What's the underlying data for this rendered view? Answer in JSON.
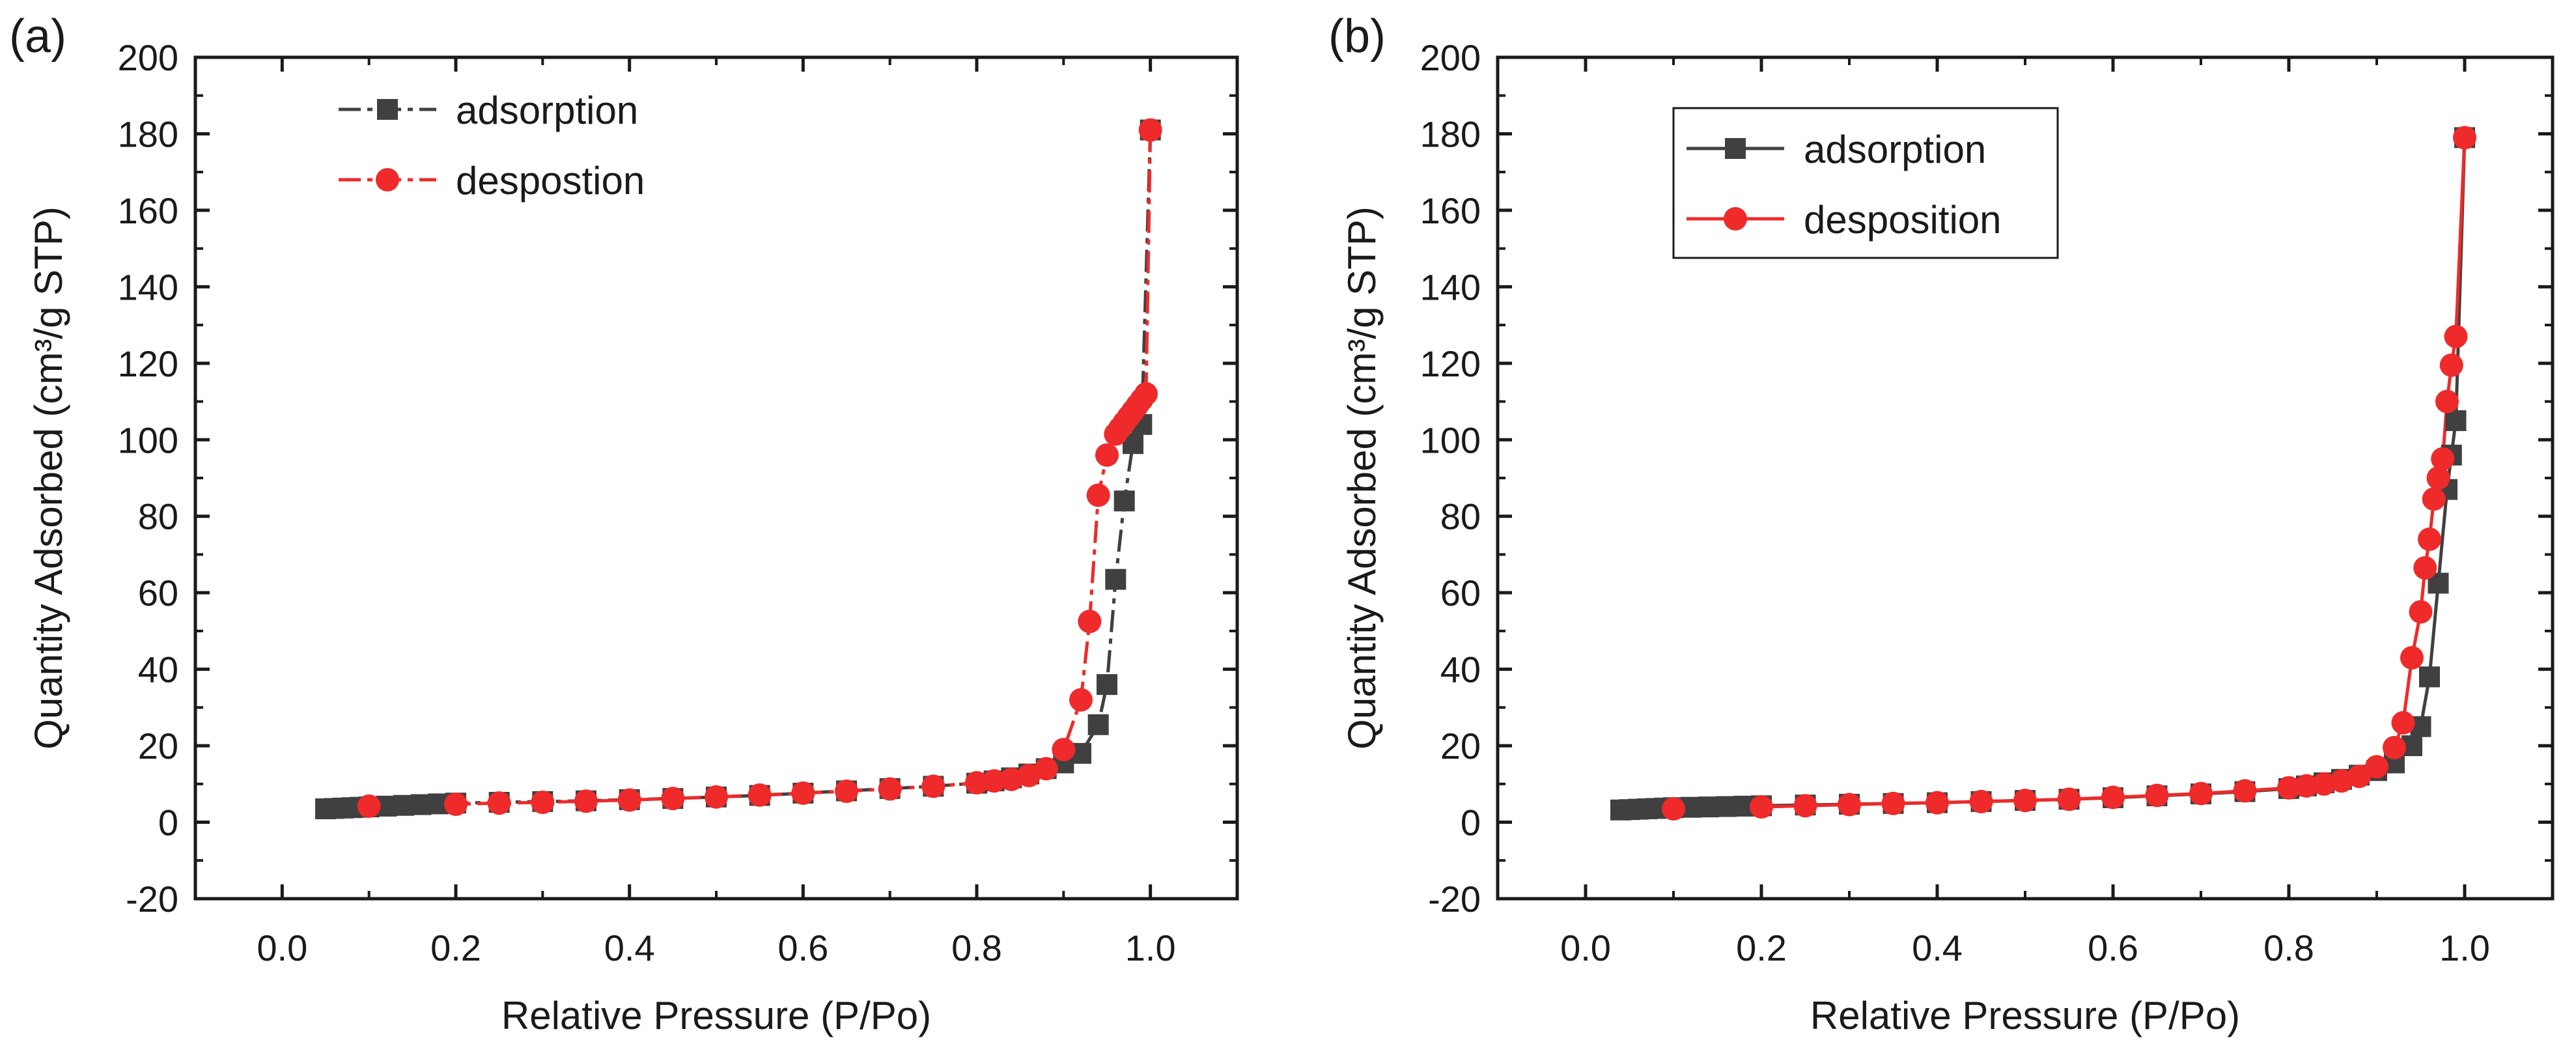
{
  "chart_data": [
    {
      "type": "scatter",
      "panel_label": "(a)",
      "xlabel": "Relative Pressure (P/Po)",
      "ylabel": "Quantity Adsorbed (cm³/g STP)",
      "xlim": [
        -0.1,
        1.1
      ],
      "ylim": [
        -20,
        200
      ],
      "xticks": [
        0.0,
        0.2,
        0.4,
        0.6,
        0.8,
        1.0
      ],
      "xtick_labels": [
        "0.0",
        "0.2",
        "0.4",
        "0.6",
        "0.8",
        "1.0"
      ],
      "yticks": [
        -20,
        0,
        20,
        40,
        60,
        80,
        100,
        120,
        140,
        160,
        180,
        200
      ],
      "ytick_labels": [
        "-20",
        "0",
        "20",
        "40",
        "60",
        "80",
        "100",
        "120",
        "140",
        "160",
        "180",
        "200"
      ],
      "grid": false,
      "legend_position": "top-left",
      "series": [
        {
          "name": "adsorption",
          "color": "#404040",
          "marker": "square",
          "line_style": "dashdot",
          "x": [
            0.05,
            0.06,
            0.07,
            0.08,
            0.09,
            0.1,
            0.12,
            0.14,
            0.16,
            0.18,
            0.2,
            0.25,
            0.3,
            0.35,
            0.4,
            0.45,
            0.5,
            0.55,
            0.6,
            0.65,
            0.7,
            0.75,
            0.8,
            0.82,
            0.84,
            0.86,
            0.88,
            0.9,
            0.92,
            0.94,
            0.95,
            0.96,
            0.97,
            0.98,
            0.99,
            1.0
          ],
          "y": [
            3.5,
            3.6,
            3.7,
            3.8,
            3.9,
            4.0,
            4.2,
            4.4,
            4.6,
            4.8,
            5.0,
            5.2,
            5.4,
            5.6,
            5.9,
            6.2,
            6.6,
            7.0,
            7.6,
            8.2,
            8.8,
            9.4,
            10.2,
            10.8,
            11.6,
            12.6,
            14.0,
            15.5,
            18.0,
            25.5,
            36.0,
            63.5,
            84.0,
            99.0,
            104.0,
            181.0
          ]
        },
        {
          "name": "despostion",
          "color": "#ee2a2a",
          "marker": "circle",
          "line_style": "dashdot",
          "x": [
            1.0,
            0.995,
            0.99,
            0.985,
            0.98,
            0.975,
            0.97,
            0.965,
            0.96,
            0.95,
            0.94,
            0.93,
            0.92,
            0.9,
            0.88,
            0.86,
            0.84,
            0.82,
            0.8,
            0.75,
            0.7,
            0.65,
            0.6,
            0.55,
            0.5,
            0.45,
            0.4,
            0.35,
            0.3,
            0.25,
            0.2,
            0.1
          ],
          "y": [
            181.0,
            112.0,
            110.5,
            109.0,
            107.5,
            106.0,
            104.5,
            103.0,
            101.5,
            96.0,
            85.5,
            52.5,
            32.0,
            19.0,
            14.0,
            12.2,
            11.2,
            10.8,
            10.3,
            9.4,
            8.7,
            8.1,
            7.6,
            7.1,
            6.6,
            6.2,
            5.8,
            5.5,
            5.2,
            5.0,
            4.7,
            4.2
          ]
        }
      ]
    },
    {
      "type": "scatter",
      "panel_label": "(b)",
      "xlabel": "Relative Pressure (P/Po)",
      "ylabel": "Quantity Adsorbed (cm³/g STP)",
      "xlim": [
        -0.1,
        1.1
      ],
      "ylim": [
        -20,
        200
      ],
      "xticks": [
        0.0,
        0.2,
        0.4,
        0.6,
        0.8,
        1.0
      ],
      "xtick_labels": [
        "0.0",
        "0.2",
        "0.4",
        "0.6",
        "0.8",
        "1.0"
      ],
      "yticks": [
        -20,
        0,
        20,
        40,
        60,
        80,
        100,
        120,
        140,
        160,
        180,
        200
      ],
      "ytick_labels": [
        "-20",
        "0",
        "20",
        "40",
        "60",
        "80",
        "100",
        "120",
        "140",
        "160",
        "180",
        "200"
      ],
      "grid": false,
      "legend_position": "top-left",
      "series": [
        {
          "name": "adsorption",
          "color": "#404040",
          "marker": "square",
          "line_style": "solid",
          "x": [
            0.04,
            0.05,
            0.06,
            0.07,
            0.08,
            0.09,
            0.1,
            0.12,
            0.14,
            0.16,
            0.18,
            0.2,
            0.25,
            0.3,
            0.35,
            0.4,
            0.45,
            0.5,
            0.55,
            0.6,
            0.65,
            0.7,
            0.75,
            0.8,
            0.82,
            0.84,
            0.86,
            0.88,
            0.9,
            0.92,
            0.94,
            0.95,
            0.96,
            0.97,
            0.98,
            0.985,
            0.99,
            1.0
          ],
          "y": [
            3.2,
            3.3,
            3.4,
            3.5,
            3.6,
            3.7,
            3.8,
            3.9,
            4.0,
            4.1,
            4.2,
            4.3,
            4.5,
            4.7,
            4.9,
            5.1,
            5.4,
            5.7,
            6.0,
            6.4,
            6.9,
            7.4,
            8.0,
            8.8,
            9.5,
            10.3,
            11.2,
            12.3,
            13.5,
            15.5,
            20.0,
            25.0,
            38.0,
            62.5,
            87.0,
            96.0,
            105.0,
            179.0
          ]
        },
        {
          "name": "desposition",
          "color": "#ee2a2a",
          "marker": "circle",
          "line_style": "solid",
          "x": [
            1.0,
            0.99,
            0.985,
            0.98,
            0.975,
            0.97,
            0.965,
            0.96,
            0.955,
            0.95,
            0.94,
            0.93,
            0.92,
            0.9,
            0.88,
            0.86,
            0.84,
            0.82,
            0.8,
            0.75,
            0.7,
            0.65,
            0.6,
            0.55,
            0.5,
            0.45,
            0.4,
            0.35,
            0.3,
            0.25,
            0.2,
            0.1
          ],
          "y": [
            179.0,
            127.0,
            119.5,
            110.0,
            95.0,
            90.0,
            84.5,
            74.0,
            66.5,
            55.0,
            43.0,
            26.0,
            19.5,
            14.5,
            12.0,
            10.8,
            10.0,
            9.5,
            9.0,
            8.2,
            7.5,
            7.0,
            6.5,
            6.0,
            5.7,
            5.4,
            5.1,
            4.9,
            4.6,
            4.3,
            4.0,
            3.5
          ]
        }
      ]
    }
  ]
}
